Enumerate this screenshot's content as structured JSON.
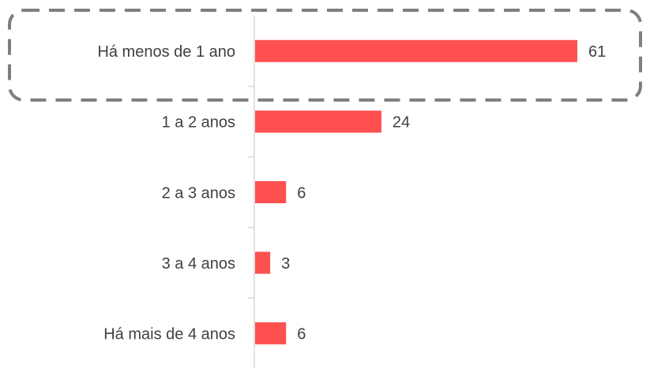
{
  "chart_data": {
    "type": "bar",
    "orientation": "horizontal",
    "categories": [
      "Há menos de 1 ano",
      "1 a 2 anos",
      "2 a 3 anos",
      "3 a 4 anos",
      "Há mais de 4 anos"
    ],
    "values": [
      61,
      24,
      6,
      3,
      6
    ],
    "color": "#ff5050"
  }
}
